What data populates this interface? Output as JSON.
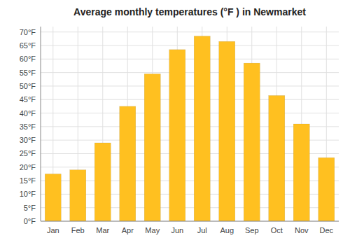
{
  "chart_data": {
    "type": "bar",
    "title": "Average monthly temperatures (°F ) in Newmarket",
    "categories": [
      "Jan",
      "Feb",
      "Mar",
      "Apr",
      "May",
      "Jun",
      "Jul",
      "Aug",
      "Sep",
      "Oct",
      "Nov",
      "Dec"
    ],
    "values": [
      17.5,
      19.0,
      29.0,
      42.5,
      54.5,
      63.5,
      68.5,
      66.5,
      58.5,
      46.5,
      36.0,
      23.5
    ],
    "color": "#FFC020",
    "ylim": [
      0,
      72
    ],
    "yticks": [
      {
        "value": 0,
        "label": "0°F"
      },
      {
        "value": 5,
        "label": "5°F"
      },
      {
        "value": 10,
        "label": "10°F"
      },
      {
        "value": 15,
        "label": "15°F"
      },
      {
        "value": 20,
        "label": "20°F"
      },
      {
        "value": 25,
        "label": "25°F"
      },
      {
        "value": 30,
        "label": "30°F"
      },
      {
        "value": 35,
        "label": "35°F"
      },
      {
        "value": 40,
        "label": "40°F"
      },
      {
        "value": 45,
        "label": "45°F"
      },
      {
        "value": 50,
        "label": "50°F"
      },
      {
        "value": 55,
        "label": "55°F"
      },
      {
        "value": 60,
        "label": "60°F"
      },
      {
        "value": 65,
        "label": "65°F"
      },
      {
        "value": 70,
        "label": "70°F"
      }
    ],
    "grid": true
  }
}
